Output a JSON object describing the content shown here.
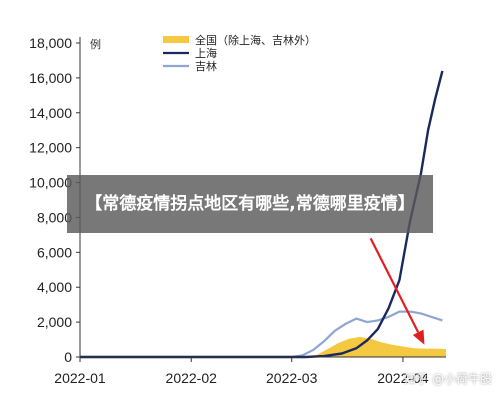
{
  "overlay": {
    "banner_text": "【常德疫情拐点地区有哪些,常德哪里疫情】",
    "watermark": "知乎 @小荷牛股"
  },
  "chart_data": {
    "type": "line",
    "unit_label": "例",
    "ylim": [
      0,
      18000
    ],
    "yticks": [
      "0",
      "2,000",
      "4,000",
      "6,000",
      "8,000",
      "10,000",
      "12,000",
      "14,000",
      "16,000",
      "18,000"
    ],
    "ytick_values": [
      0,
      2000,
      4000,
      6000,
      8000,
      10000,
      12000,
      14000,
      16000,
      18000
    ],
    "x_tick_labels": [
      "2022-01",
      "2022-02",
      "2022-03",
      "2022-04"
    ],
    "x_tick_dates": [
      "2022-01-01",
      "2022-02-01",
      "2022-03-01",
      "2022-04-01"
    ],
    "xlim": [
      "2022-01-01",
      "2022-04-13"
    ],
    "legend_position": "top",
    "colors": {
      "national": "#f5c842",
      "shanghai": "#1a2a5c",
      "jilin": "#8fa6d2",
      "arrow": "#e02020"
    },
    "series": [
      {
        "name": "全国（除上海、吉林外）",
        "kind": "area",
        "points": [
          [
            "2022-01-01",
            0
          ],
          [
            "2022-02-15",
            0
          ],
          [
            "2022-03-05",
            20
          ],
          [
            "2022-03-08",
            120
          ],
          [
            "2022-03-11",
            450
          ],
          [
            "2022-03-14",
            800
          ],
          [
            "2022-03-17",
            1050
          ],
          [
            "2022-03-20",
            1150
          ],
          [
            "2022-03-23",
            1050
          ],
          [
            "2022-03-26",
            850
          ],
          [
            "2022-03-29",
            700
          ],
          [
            "2022-04-01",
            600
          ],
          [
            "2022-04-04",
            500
          ],
          [
            "2022-04-07",
            480
          ],
          [
            "2022-04-10",
            480
          ],
          [
            "2022-04-13",
            460
          ]
        ]
      },
      {
        "name": "上海",
        "kind": "line",
        "points": [
          [
            "2022-01-01",
            0
          ],
          [
            "2022-03-05",
            0
          ],
          [
            "2022-03-10",
            50
          ],
          [
            "2022-03-15",
            200
          ],
          [
            "2022-03-19",
            500
          ],
          [
            "2022-03-22",
            950
          ],
          [
            "2022-03-25",
            1600
          ],
          [
            "2022-03-28",
            2800
          ],
          [
            "2022-03-31",
            4400
          ],
          [
            "2022-04-03",
            7800
          ],
          [
            "2022-04-06",
            10500
          ],
          [
            "2022-04-08",
            13000
          ],
          [
            "2022-04-10",
            14800
          ],
          [
            "2022-04-12",
            16400
          ]
        ]
      },
      {
        "name": "吉林",
        "kind": "line",
        "points": [
          [
            "2022-01-01",
            0
          ],
          [
            "2022-03-01",
            0
          ],
          [
            "2022-03-04",
            100
          ],
          [
            "2022-03-07",
            400
          ],
          [
            "2022-03-10",
            900
          ],
          [
            "2022-03-13",
            1500
          ],
          [
            "2022-03-16",
            1900
          ],
          [
            "2022-03-19",
            2200
          ],
          [
            "2022-03-22",
            2000
          ],
          [
            "2022-03-25",
            2100
          ],
          [
            "2022-03-28",
            2300
          ],
          [
            "2022-03-31",
            2600
          ],
          [
            "2022-04-03",
            2600
          ],
          [
            "2022-04-06",
            2500
          ],
          [
            "2022-04-09",
            2300
          ],
          [
            "2022-04-12",
            2100
          ]
        ]
      }
    ],
    "annotation": {
      "type": "arrow",
      "from": [
        "2022-03-23",
        6800
      ],
      "to": [
        "2022-04-07",
        700
      ]
    }
  }
}
